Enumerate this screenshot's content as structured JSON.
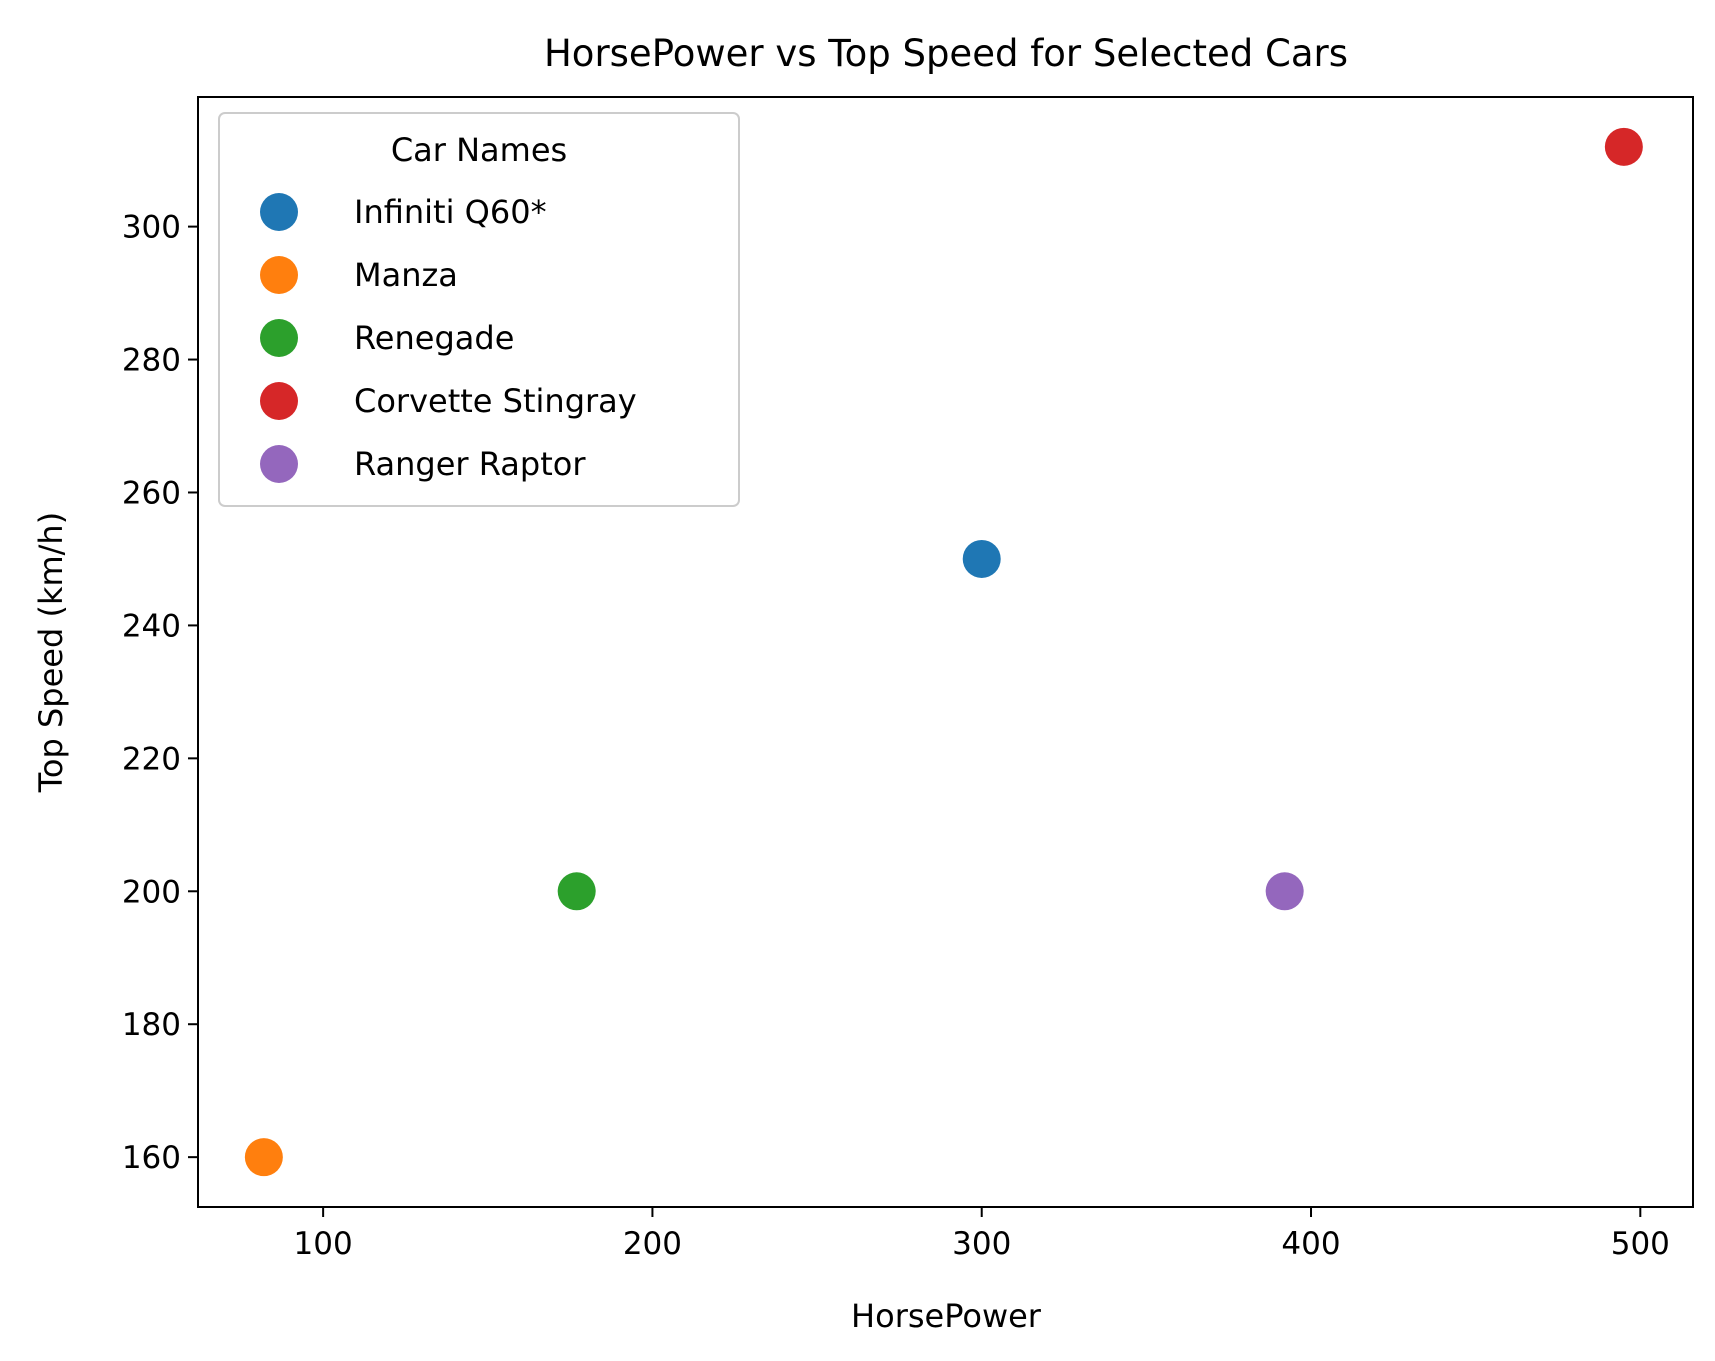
{
  "chart_data": {
    "type": "scatter",
    "title": "HorsePower vs Top Speed for Selected Cars",
    "xlabel": "HorsePower",
    "ylabel": "Top Speed (km/h)",
    "xlim": [
      62,
      516
    ],
    "ylim": [
      152.5,
      319.5
    ],
    "xticks": [
      100,
      200,
      300,
      400,
      500
    ],
    "yticks": [
      160,
      180,
      200,
      220,
      240,
      260,
      280,
      300
    ],
    "grid": false,
    "legend": {
      "title": "Car Names",
      "placement": "top-left"
    },
    "series": [
      {
        "name": "Infiniti Q60*",
        "x": 300,
        "y": 250,
        "color": "#1f77b4"
      },
      {
        "name": "Manza",
        "x": 82,
        "y": 160,
        "color": "#ff7f0e"
      },
      {
        "name": "Renegade",
        "x": 177,
        "y": 200,
        "color": "#2ca02c"
      },
      {
        "name": "Corvette Stingray",
        "x": 495,
        "y": 312,
        "color": "#d62728"
      },
      {
        "name": "Ranger Raptor",
        "x": 392,
        "y": 200,
        "color": "#9467bd"
      }
    ]
  }
}
